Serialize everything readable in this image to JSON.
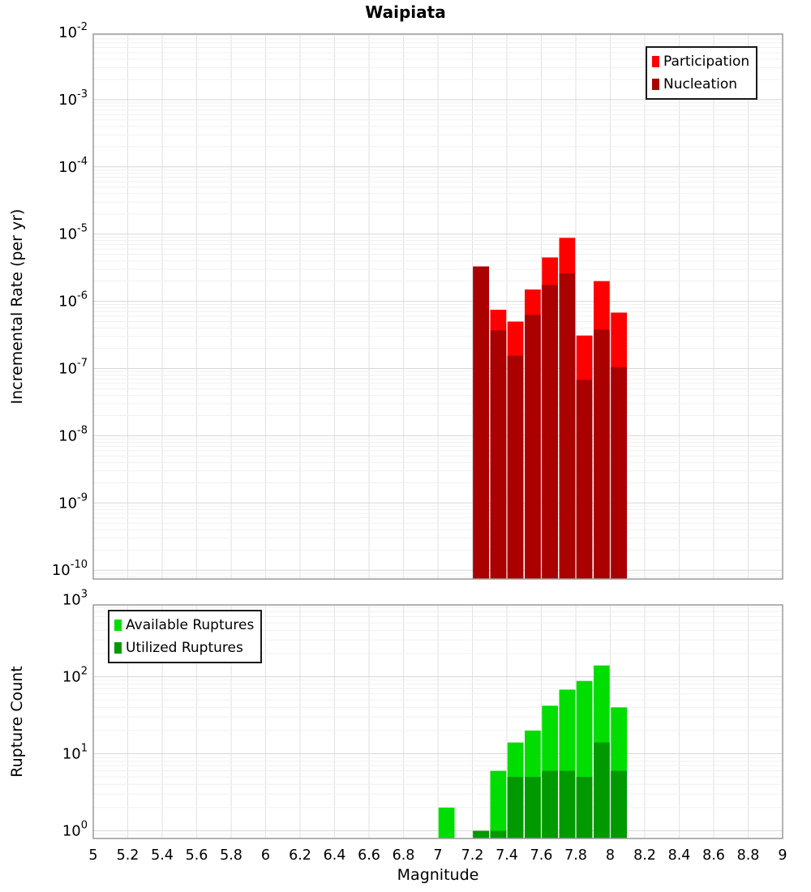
{
  "chart_data": [
    {
      "type": "bar",
      "title": "Waipiata",
      "ylabel": "Incremental Rate (per yr)",
      "y_scale": "log",
      "y_tick_exponents": [
        -2,
        -3,
        -4,
        -5,
        -6,
        -7,
        -8,
        -9,
        -10
      ],
      "y_range_exponents": [
        -10.13,
        -2.02
      ],
      "x_range": [
        5,
        9
      ],
      "bin_width": 0.1,
      "grid": true,
      "legend_position": "top-right",
      "x": [
        7.25,
        7.35,
        7.45,
        7.55,
        7.65,
        7.75,
        7.85,
        7.95,
        8.05
      ],
      "series": [
        {
          "name": "Participation",
          "color": "#ff0000",
          "values": [
            3.3e-06,
            7.5e-07,
            5e-07,
            1.5e-06,
            4.5e-06,
            8.8e-06,
            3.1e-07,
            2e-06,
            6.8e-07
          ]
        },
        {
          "name": "Nucleation",
          "color": "#aa0000",
          "values": [
            3.3e-06,
            3.7e-07,
            1.55e-07,
            6.3e-07,
            1.75e-06,
            2.6e-06,
            6.8e-08,
            3.8e-07,
            1.05e-07
          ]
        }
      ]
    },
    {
      "type": "bar",
      "title": "",
      "ylabel": "Rupture Count",
      "xlabel": "Magnitude",
      "y_scale": "log",
      "y_tick_exponents": [
        0,
        1,
        2,
        3
      ],
      "y_range_exponents": [
        -0.1,
        2.93
      ],
      "x_range": [
        5,
        9
      ],
      "bin_width": 0.1,
      "grid": true,
      "legend_position": "top-left",
      "x_tick_labels": [
        "5",
        "5.2",
        "5.4",
        "5.6",
        "5.8",
        "6",
        "6.2",
        "6.4",
        "6.6",
        "6.8",
        "7",
        "7.2",
        "7.4",
        "7.6",
        "7.8",
        "8",
        "8.2",
        "8.4",
        "8.6",
        "8.8",
        "9"
      ],
      "x": [
        7.05,
        7.25,
        7.35,
        7.45,
        7.55,
        7.65,
        7.75,
        7.85,
        7.95,
        8.05
      ],
      "series": [
        {
          "name": "Available Ruptures",
          "color": "#00dd00",
          "values": [
            2,
            1,
            6,
            14,
            20,
            42,
            68,
            88,
            140,
            40
          ]
        },
        {
          "name": "Utilized Ruptures",
          "color": "#009900",
          "values": [
            0,
            1,
            1,
            5,
            5,
            6,
            6,
            5,
            14,
            6
          ]
        }
      ]
    }
  ]
}
